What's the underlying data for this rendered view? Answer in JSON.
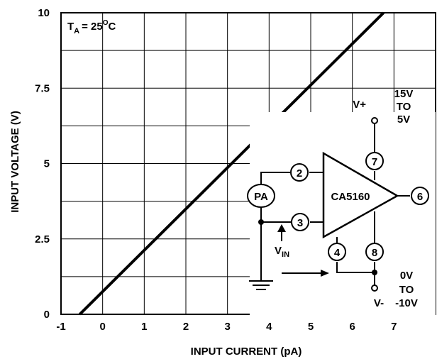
{
  "chart_data": {
    "type": "line",
    "xlabel": "INPUT CURRENT (pA)",
    "ylabel": "INPUT VOLTAGE (V)",
    "xlim": [
      -1,
      8
    ],
    "ylim": [
      0,
      10
    ],
    "x_ticks": [
      "-1",
      "0",
      "1",
      "2",
      "3",
      "4",
      "5",
      "6",
      "7"
    ],
    "y_ticks": [
      "0",
      "2.5",
      "5",
      "7.5",
      "10"
    ],
    "grid": true,
    "series": [
      {
        "x": [
          -0.55,
          6.75
        ],
        "y": [
          0,
          10
        ]
      }
    ],
    "annotation": {
      "ta_label": "T",
      "ta_sub": "A",
      "ta_value": "= 25",
      "ta_degree": "O",
      "ta_unit": "C"
    }
  },
  "circuit": {
    "amp_label": "CA5160",
    "meter_label": "PA",
    "pins": [
      "2",
      "3",
      "7",
      "8",
      "4",
      "6"
    ],
    "vplus_label": "V+",
    "vplus_range": [
      "15V",
      "TO",
      "5V"
    ],
    "vminus_label": "V-",
    "vminus_range": [
      "0V",
      "TO",
      "-10V"
    ],
    "vin_label": "V",
    "vin_sub": "IN"
  },
  "colors": {
    "line": "#000000",
    "grid": "#000000",
    "background": "#ffffff"
  }
}
